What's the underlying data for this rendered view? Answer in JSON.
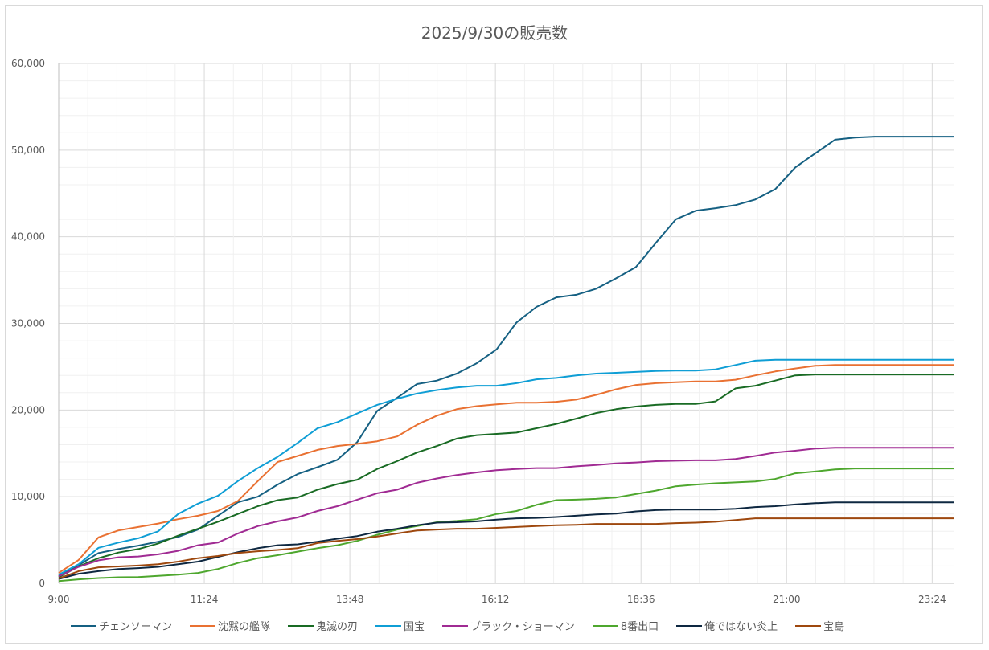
{
  "chart_data": {
    "type": "line",
    "title": "2025/9/30の販売数",
    "xlabel": "",
    "ylabel": "",
    "x_start": "9:00",
    "x_end": "23:46",
    "x_range_minutes": [
      0,
      886
    ],
    "x_point_interval_note": "46 points evenly spaced from 9:00 to 23:46",
    "x_tick_labels": [
      "9:00",
      "11:24",
      "13:48",
      "16:12",
      "18:36",
      "21:00",
      "23:24"
    ],
    "x_tick_minutes": [
      0,
      144,
      288,
      432,
      576,
      720,
      864
    ],
    "ylim": [
      0,
      60000
    ],
    "y_tick_labels": [
      "0",
      "10,000",
      "20,000",
      "30,000",
      "40,000",
      "50,000",
      "60,000"
    ],
    "y_ticks": [
      0,
      10000,
      20000,
      30000,
      40000,
      50000,
      60000
    ],
    "grid": "major and minor",
    "legend": "bottom",
    "series": [
      {
        "name": "チェンソーマン",
        "color": "#156082",
        "values": [
          850,
          2100,
          3500,
          3950,
          4350,
          4800,
          5350,
          6200,
          7800,
          9350,
          10000,
          11400,
          12600,
          13400,
          14250,
          16300,
          19900,
          21400,
          23000,
          23400,
          24200,
          25400,
          27000,
          30100,
          31900,
          33000,
          33300,
          34000,
          35200,
          36500,
          39300,
          42000,
          43000,
          43300,
          43650,
          44300,
          45500,
          48000,
          49600,
          51200,
          51450,
          51550,
          51550,
          51550,
          51550,
          51550
        ]
      },
      {
        "name": "沈黙の艦隊",
        "color": "#E97132",
        "values": [
          1200,
          2700,
          5300,
          6100,
          6500,
          6900,
          7400,
          7800,
          8350,
          9500,
          11800,
          14000,
          14700,
          15400,
          15850,
          16100,
          16400,
          16950,
          18300,
          19350,
          20100,
          20450,
          20650,
          20850,
          20850,
          20950,
          21200,
          21750,
          22400,
          22900,
          23100,
          23200,
          23300,
          23300,
          23500,
          24000,
          24450,
          24800,
          25100,
          25200,
          25200,
          25200,
          25200,
          25200,
          25200,
          25200
        ]
      },
      {
        "name": "鬼滅の刃",
        "color": "#196B24",
        "values": [
          700,
          1950,
          2900,
          3550,
          3950,
          4600,
          5500,
          6300,
          7100,
          8000,
          8900,
          9600,
          9900,
          10800,
          11450,
          11950,
          13200,
          14100,
          15100,
          15850,
          16700,
          17100,
          17250,
          17400,
          17900,
          18400,
          19000,
          19650,
          20100,
          20400,
          20600,
          20700,
          20700,
          21000,
          22500,
          22800,
          23400,
          24000,
          24100,
          24100,
          24100,
          24100,
          24100,
          24100,
          24100,
          24100
        ]
      },
      {
        "name": "国宝",
        "color": "#0F9ED5",
        "values": [
          1000,
          2200,
          4100,
          4700,
          5200,
          6000,
          8000,
          9200,
          10100,
          11800,
          13300,
          14600,
          16200,
          17900,
          18600,
          19600,
          20600,
          21300,
          21900,
          22300,
          22600,
          22800,
          22800,
          23100,
          23550,
          23700,
          24000,
          24200,
          24300,
          24400,
          24500,
          24550,
          24550,
          24700,
          25200,
          25700,
          25800,
          25800,
          25800,
          25800,
          25800,
          25800,
          25800,
          25800,
          25800,
          25800
        ]
      },
      {
        "name": "ブラック・ショーマン",
        "color": "#A02B93",
        "values": [
          800,
          1900,
          2650,
          3000,
          3100,
          3350,
          3750,
          4400,
          4700,
          5750,
          6600,
          7150,
          7600,
          8350,
          8900,
          9650,
          10400,
          10800,
          11600,
          12100,
          12500,
          12800,
          13050,
          13200,
          13300,
          13300,
          13500,
          13650,
          13850,
          13950,
          14100,
          14150,
          14200,
          14200,
          14350,
          14700,
          15100,
          15300,
          15550,
          15650,
          15650,
          15650,
          15650,
          15650,
          15650,
          15650
        ]
      },
      {
        "name": "8番出口",
        "color": "#4EA72E",
        "values": [
          250,
          450,
          600,
          700,
          720,
          850,
          1000,
          1200,
          1650,
          2350,
          2900,
          3250,
          3650,
          4050,
          4400,
          4900,
          5600,
          6200,
          6600,
          7050,
          7200,
          7400,
          8000,
          8350,
          9050,
          9600,
          9650,
          9750,
          9900,
          10300,
          10700,
          11200,
          11400,
          11550,
          11650,
          11750,
          12050,
          12700,
          12900,
          13150,
          13250,
          13250,
          13250,
          13250,
          13250,
          13250
        ]
      },
      {
        "name": "俺ではない炎上",
        "color": "#0E2841",
        "values": [
          500,
          1100,
          1400,
          1650,
          1750,
          1900,
          2200,
          2500,
          3050,
          3600,
          4050,
          4400,
          4500,
          4800,
          5150,
          5450,
          5950,
          6300,
          6700,
          7000,
          7050,
          7150,
          7350,
          7500,
          7550,
          7650,
          7800,
          7950,
          8050,
          8300,
          8450,
          8500,
          8500,
          8500,
          8600,
          8800,
          8900,
          9100,
          9250,
          9350,
          9350,
          9350,
          9350,
          9350,
          9350,
          9350
        ]
      },
      {
        "name": "宝島",
        "color": "#9E480E",
        "values": [
          550,
          1400,
          1850,
          1950,
          2050,
          2200,
          2500,
          2900,
          3150,
          3500,
          3700,
          3850,
          4050,
          4650,
          4900,
          5100,
          5400,
          5750,
          6100,
          6200,
          6300,
          6300,
          6400,
          6500,
          6600,
          6700,
          6750,
          6850,
          6850,
          6850,
          6850,
          6950,
          7000,
          7100,
          7300,
          7500,
          7500,
          7500,
          7500,
          7500,
          7500,
          7500,
          7500,
          7500,
          7500,
          7500
        ]
      }
    ]
  }
}
